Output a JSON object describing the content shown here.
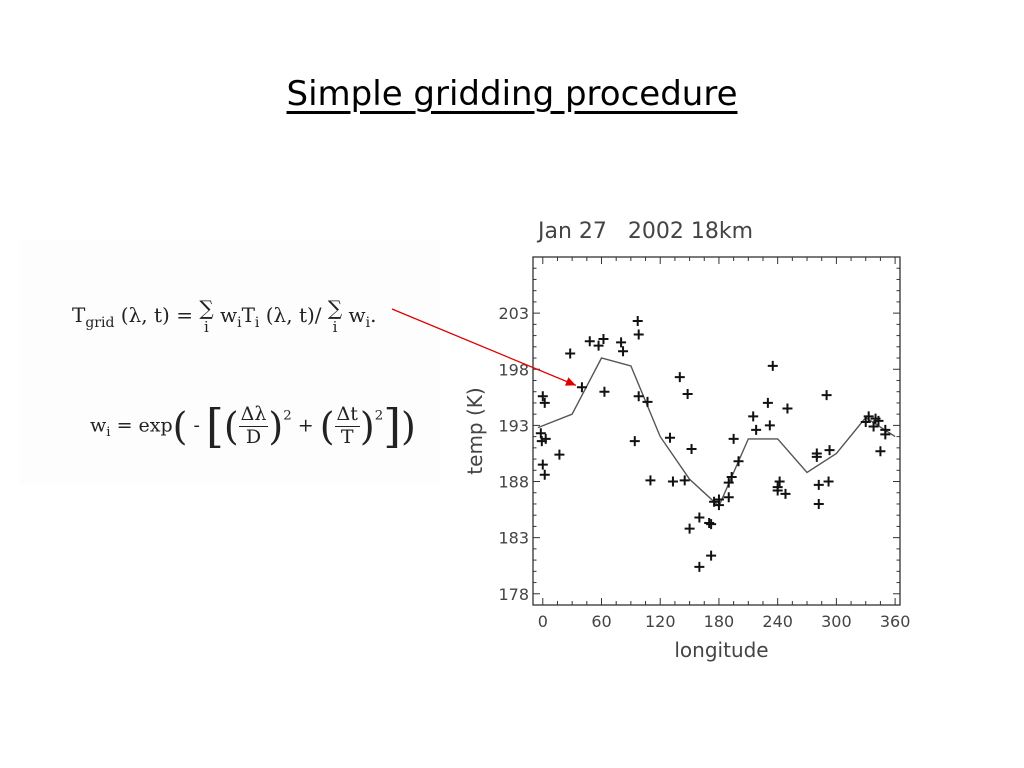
{
  "slide": {
    "title": "Simple gridding procedure"
  },
  "formulas": {
    "tgrid": {
      "T": "T",
      "grid_sub": "grid",
      "args": "(λ, t) =",
      "sum": "∑",
      "sum_index": "i",
      "w": "w",
      "i_sub": "i",
      "Ti": "T",
      "args2": "(λ, t)/",
      "w_end": "w",
      "end": "."
    },
    "weight": {
      "w": "w",
      "i_sub": "i",
      "eq": "= exp",
      "minus": "-",
      "dlambda": "Δλ",
      "D": "D",
      "dt": "Δt",
      "T": "T",
      "plus": "+",
      "sq": "2"
    }
  },
  "chart_data": {
    "type": "scatter",
    "title": "Jan 27   2002 18km",
    "xlabel": "longitude",
    "ylabel": "temp (K)",
    "xlim": [
      -10,
      365
    ],
    "ylim": [
      177,
      208
    ],
    "xticks": [
      0,
      60,
      120,
      180,
      240,
      300,
      360
    ],
    "yticks": [
      178,
      183,
      188,
      193,
      198,
      203
    ],
    "grid": false,
    "series": [
      {
        "type": "scatter",
        "marker": "+",
        "points": [
          [
            -2,
            192.3
          ],
          [
            0,
            195.6
          ],
          [
            2,
            195.0
          ],
          [
            -1,
            191.6
          ],
          [
            0,
            189.5
          ],
          [
            3,
            191.8
          ],
          [
            2,
            188.6
          ],
          [
            17,
            190.4
          ],
          [
            28,
            199.4
          ],
          [
            40,
            196.4
          ],
          [
            48,
            200.5
          ],
          [
            57,
            200.1
          ],
          [
            62,
            200.7
          ],
          [
            63,
            196.0
          ],
          [
            80,
            200.4
          ],
          [
            82,
            199.6
          ],
          [
            94,
            191.6
          ],
          [
            97,
            202.3
          ],
          [
            98,
            201.1
          ],
          [
            98,
            195.6
          ],
          [
            107,
            195.1
          ],
          [
            110,
            188.1
          ],
          [
            130,
            191.9
          ],
          [
            133,
            188.0
          ],
          [
            140,
            197.3
          ],
          [
            145,
            188.1
          ],
          [
            148,
            195.8
          ],
          [
            152,
            190.9
          ],
          [
            150,
            183.8
          ],
          [
            160,
            184.8
          ],
          [
            160,
            180.4
          ],
          [
            170,
            184.3
          ],
          [
            172,
            181.4
          ],
          [
            172,
            184.2
          ],
          [
            175,
            186.2
          ],
          [
            180,
            185.9
          ],
          [
            180,
            186.4
          ],
          [
            190,
            186.6
          ],
          [
            190,
            187.9
          ],
          [
            193,
            188.4
          ],
          [
            195,
            191.8
          ],
          [
            200,
            189.8
          ],
          [
            215,
            193.8
          ],
          [
            218,
            192.6
          ],
          [
            230,
            195.0
          ],
          [
            232,
            193.0
          ],
          [
            235,
            198.3
          ],
          [
            240,
            187.5
          ],
          [
            242,
            188.0
          ],
          [
            240,
            187.2
          ],
          [
            248,
            186.9
          ],
          [
            250,
            194.5
          ],
          [
            280,
            190.2
          ],
          [
            282,
            187.7
          ],
          [
            280,
            190.5
          ],
          [
            282,
            186.0
          ],
          [
            290,
            195.7
          ],
          [
            292,
            188.0
          ],
          [
            293,
            190.8
          ],
          [
            330,
            193.3
          ],
          [
            333,
            193.8
          ],
          [
            338,
            192.9
          ],
          [
            340,
            193.6
          ],
          [
            343,
            193.4
          ],
          [
            345,
            190.7
          ],
          [
            350,
            192.6
          ],
          [
            350,
            192.2
          ]
        ]
      },
      {
        "type": "line",
        "points": [
          [
            -5,
            192.8
          ],
          [
            30,
            194.0
          ],
          [
            60,
            199.0
          ],
          [
            90,
            198.3
          ],
          [
            120,
            192.0
          ],
          [
            150,
            188.2
          ],
          [
            180,
            185.8
          ],
          [
            210,
            191.8
          ],
          [
            240,
            191.8
          ],
          [
            270,
            188.8
          ],
          [
            300,
            190.5
          ],
          [
            330,
            193.7
          ],
          [
            360,
            192.0
          ]
        ]
      }
    ],
    "colors": {
      "markers": "#111111",
      "line": "#555555",
      "frame": "#333333",
      "text": "#444444",
      "annotation_arrow": "#e00000"
    }
  }
}
